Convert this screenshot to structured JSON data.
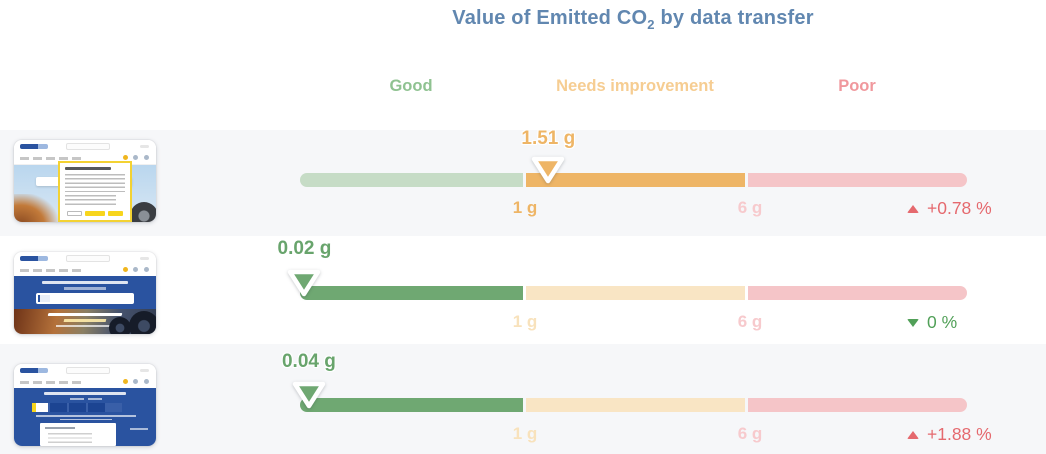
{
  "title": {
    "prefix": "Value of Emitted CO",
    "subscript": "2",
    "suffix": " by data transfer"
  },
  "colors": {
    "title": "#6187b0",
    "row_band_background": "#f6f7f9",
    "good_active": "#6fa872",
    "good_faded": "#c6dcc6",
    "warn_active": "#eeb566",
    "warn_faded": "#f9e5c4",
    "poor_faded": "#f5c5c8",
    "good_header": "#8fc291",
    "warn_header": "#f6cd92",
    "poor_header": "#f0989d",
    "trend_up_red": "#e5696e",
    "trend_down_green": "#51a058"
  },
  "chart_data": {
    "type": "bullet",
    "title": "Value of Emitted CO2 by data transfer",
    "unit": "g",
    "axis": {
      "min": 0,
      "max": 11,
      "ticks": [
        {
          "value": 1,
          "label": "1 g"
        },
        {
          "value": 6,
          "label": "6 g"
        }
      ]
    },
    "bands": [
      {
        "label": "Good",
        "range_g": [
          0,
          1
        ]
      },
      {
        "label": "Needs improvement",
        "range_g": [
          1,
          6
        ]
      },
      {
        "label": "Poor",
        "range_g": [
          6,
          11
        ]
      }
    ],
    "legend_position": "top",
    "rows": [
      {
        "thumbnail": "michelin-homepage-cookie-consent-thumbnail",
        "value_g": 1.51,
        "value_label": "1.51 g",
        "band": "Needs improvement",
        "change": {
          "label": "+0.78 %",
          "direction": "up",
          "sentiment": "bad"
        }
      },
      {
        "thumbnail": "michelin-homepage-thumbnail",
        "value_g": 0.02,
        "value_label": "0.02 g",
        "band": "Good",
        "change": {
          "label": "0 %",
          "direction": "down",
          "sentiment": "good"
        }
      },
      {
        "thumbnail": "michelin-search-results-thumbnail",
        "value_g": 0.04,
        "value_label": "0.04 g",
        "band": "Good",
        "change": {
          "label": "+1.88 %",
          "direction": "up",
          "sentiment": "bad"
        }
      }
    ]
  }
}
